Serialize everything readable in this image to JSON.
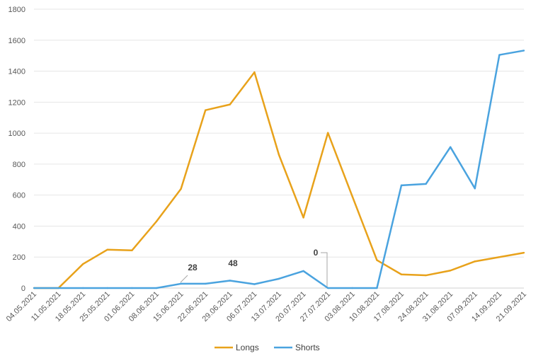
{
  "chart_data": {
    "type": "line",
    "title": "",
    "xlabel": "",
    "ylabel": "",
    "ylim": [
      0,
      1800
    ],
    "yticks": [
      0,
      200,
      400,
      600,
      800,
      1000,
      1200,
      1400,
      1600,
      1800
    ],
    "grid": true,
    "legend_position": "bottom",
    "categories": [
      "04.05.2021",
      "11.05.2021",
      "18.05.2021",
      "25.05.2021",
      "01.06.2021",
      "08.06.2021",
      "15.06.2021",
      "22.06.2021",
      "29.06.2021",
      "06.07.2021",
      "13.07.2021",
      "20.07.2021",
      "27.07.2021",
      "03.08.2021",
      "10.08.2021",
      "17.08.2021",
      "24.08.2021",
      "31.08.2021",
      "07.09.2021",
      "14.09.2021",
      "21.09.2021"
    ],
    "series": [
      {
        "name": "Longs",
        "color": "#E8A21B",
        "values": [
          0,
          0,
          155,
          248,
          243,
          430,
          640,
          1148,
          1185,
          1393,
          860,
          455,
          1002,
          590,
          180,
          88,
          82,
          113,
          172,
          200,
          228
        ]
      },
      {
        "name": "Shorts",
        "color": "#4AA3DF",
        "values": [
          0,
          0,
          0,
          0,
          0,
          0,
          28,
          28,
          48,
          25,
          60,
          110,
          0,
          0,
          0,
          663,
          672,
          910,
          643,
          1505,
          1533
        ]
      }
    ],
    "data_labels": [
      {
        "series": "Shorts",
        "index": 6,
        "text": "28"
      },
      {
        "series": "Shorts",
        "index": 8,
        "text": "48"
      },
      {
        "series": "Shorts",
        "index": 12,
        "text": "0"
      }
    ]
  }
}
